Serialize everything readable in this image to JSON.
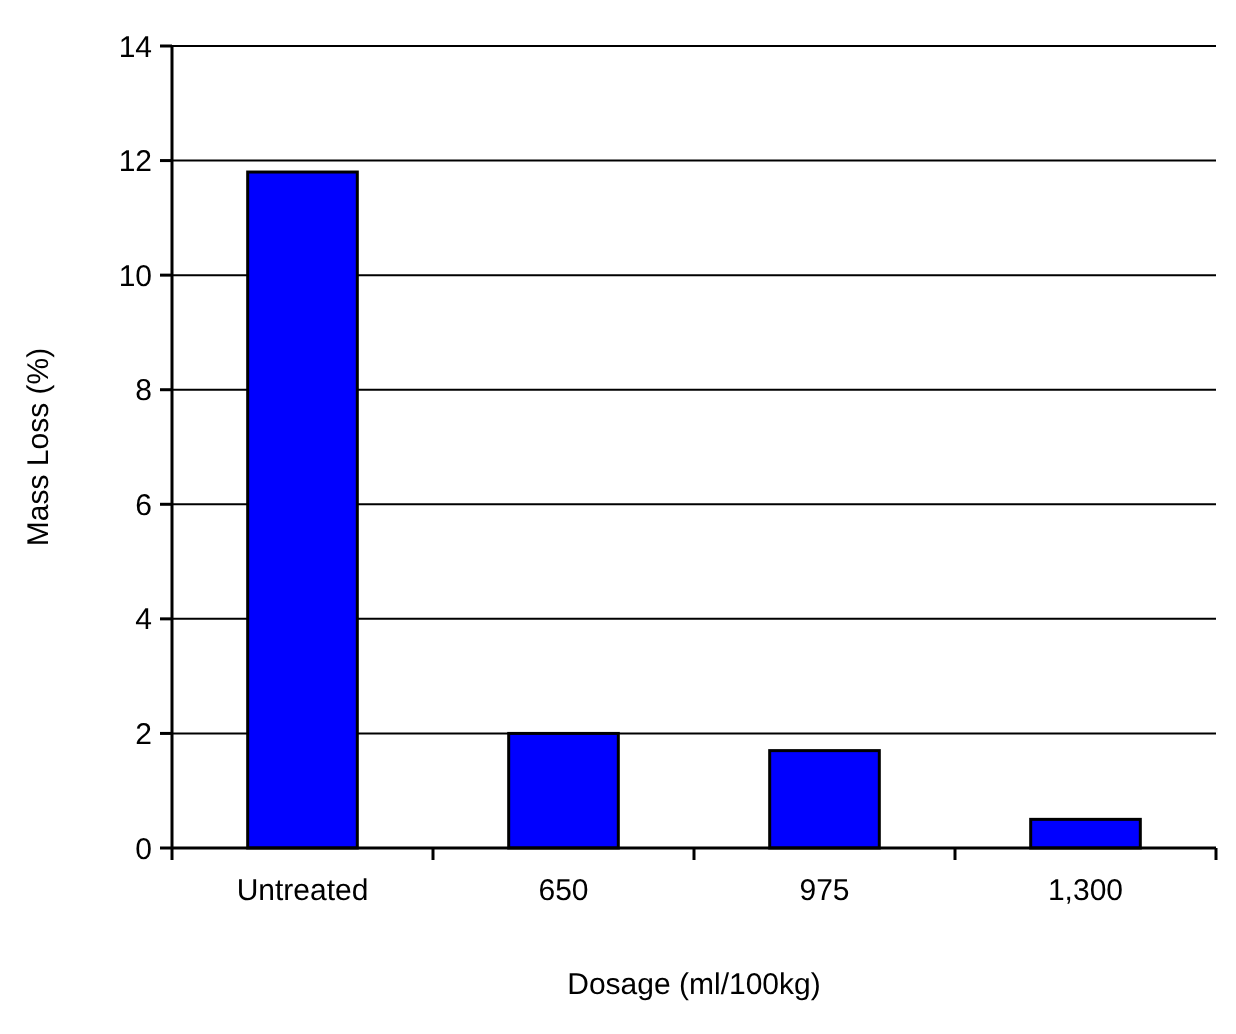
{
  "chart_data": {
    "type": "bar",
    "xlabel": "Dosage (ml/100kg)",
    "ylabel": "Mass Loss (%)",
    "categories": [
      "Untreated",
      "650",
      "975",
      "1,300"
    ],
    "values": [
      11.8,
      2.0,
      1.7,
      0.5
    ],
    "color": "#0000ff",
    "ylim": [
      0,
      14
    ],
    "yticks": [
      0,
      2,
      4,
      6,
      8,
      10,
      12,
      14
    ],
    "grid": "y"
  }
}
